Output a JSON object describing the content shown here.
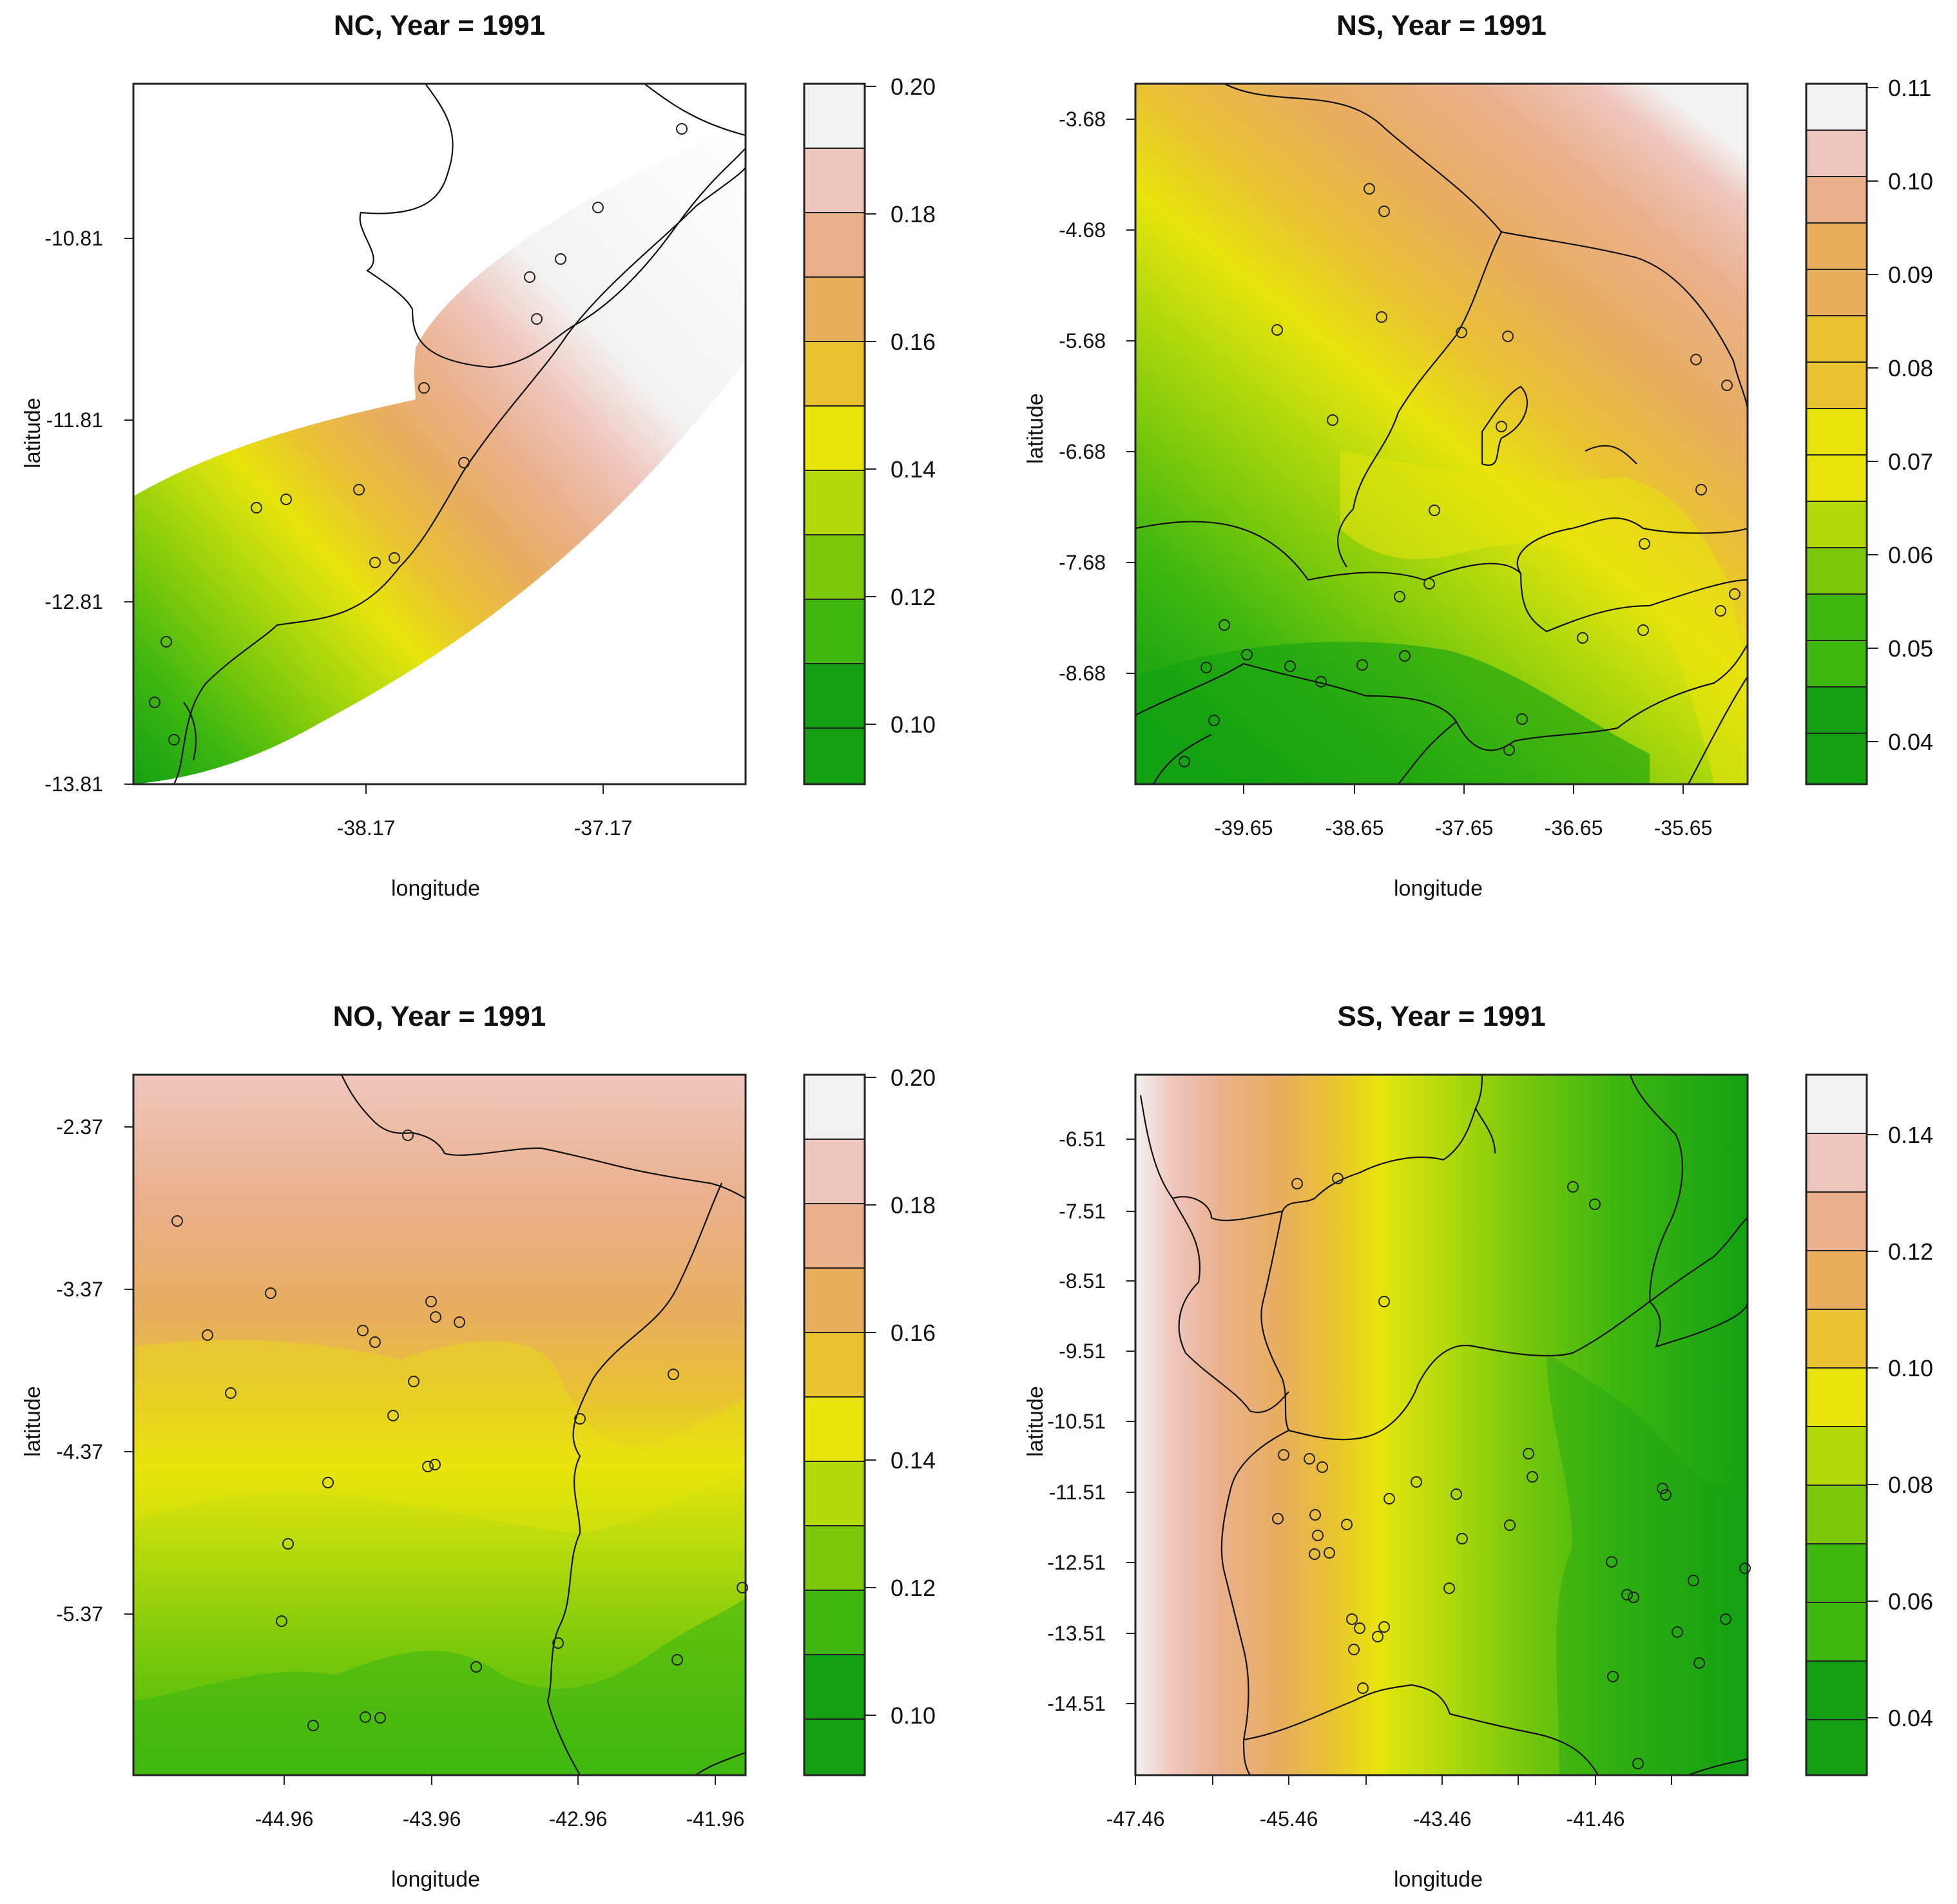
{
  "colors": {
    "green_dark": "#13a113",
    "green_mid": "#3fb710",
    "green_light": "#7cc90b",
    "yellow_green": "#b5da0c",
    "yellow": "#e8e40c",
    "gold": "#e9c232",
    "orange": "#e8ae5e",
    "salmon": "#eab08c",
    "pink": "#efc6bd",
    "very_light": "#f2f2f2"
  },
  "panels": [
    {
      "id": "NC",
      "title": "NC, Year = 1991",
      "xlabel": "longitude",
      "ylabel": "latitude",
      "xticks": [
        "-38.17",
        "-37.17"
      ],
      "yticks": [
        "-10.81",
        "-11.81",
        "-12.81",
        "-13.81"
      ],
      "legend": [
        "0.20",
        "0.18",
        "0.16",
        "0.14",
        "0.12",
        "0.10"
      ]
    },
    {
      "id": "NS",
      "title": "NS, Year = 1991",
      "xlabel": "longitude",
      "ylabel": "latitude",
      "xticks": [
        "-39.65",
        "-38.65",
        "-37.65",
        "-36.65",
        "-35.65"
      ],
      "yticks": [
        "-3.68",
        "-4.68",
        "-5.68",
        "-6.68",
        "-7.68",
        "-8.68"
      ],
      "legend": [
        "0.11",
        "0.10",
        "0.09",
        "0.08",
        "0.07",
        "0.06",
        "0.05",
        "0.04"
      ]
    },
    {
      "id": "NO",
      "title": "NO, Year = 1991",
      "xlabel": "longitude",
      "ylabel": "latitude",
      "xticks": [
        "-44.96",
        "-43.96",
        "-42.96",
        "-41.96"
      ],
      "yticks": [
        "-2.37",
        "-3.37",
        "-4.37",
        "-5.37"
      ],
      "legend": [
        "0.20",
        "0.18",
        "0.16",
        "0.14",
        "0.12",
        "0.10"
      ]
    },
    {
      "id": "SS",
      "title": "SS, Year = 1991",
      "xlabel": "longitude",
      "ylabel": "latitude",
      "xticks": [
        "-47.46",
        "-45.46",
        "-43.46",
        "-41.46"
      ],
      "yticks": [
        "-6.51",
        "-7.51",
        "-8.51",
        "-9.51",
        "-10.51",
        "-11.51",
        "-12.51",
        "-13.51",
        "-14.51"
      ],
      "legend": [
        "0.14",
        "0.12",
        "0.10",
        "0.08",
        "0.06",
        "0.04"
      ]
    }
  ]
}
